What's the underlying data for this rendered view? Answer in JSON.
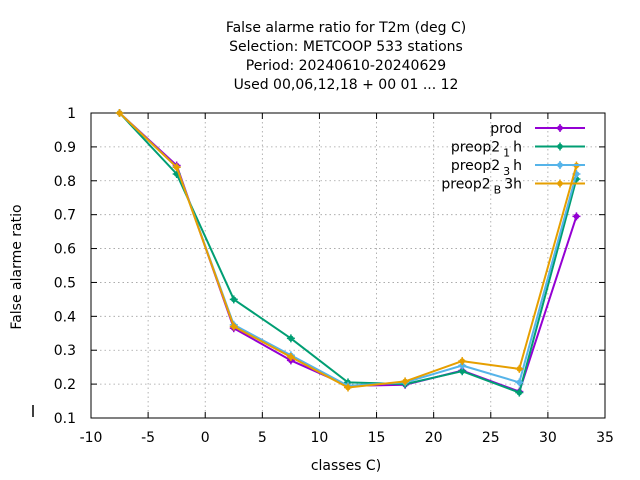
{
  "chart_data": {
    "type": "line",
    "title_lines": [
      "False alarme ratio  for T2m (deg C)",
      "Selection: METCOOP    533 stations",
      "Period: 20240610-20240629",
      "Used  00,06,12,18 + 00 01 ... 12"
    ],
    "xlabel": "classes C)",
    "ylabel": "False alarme ratio",
    "xlim": [
      -10,
      35
    ],
    "ylim": [
      0.1,
      1
    ],
    "xticks": [
      "-10",
      "-5",
      "0",
      "5",
      "10",
      "15",
      "20",
      "25",
      "30",
      "35"
    ],
    "yticks": [
      "0.1",
      "0.2",
      "0.3",
      "0.4",
      "0.5",
      "0.6",
      "0.7",
      "0.8",
      "0.9",
      "1"
    ],
    "grid": true,
    "legend_position": "top-right",
    "x": [
      -7.5,
      -2.5,
      2.5,
      7.5,
      12.5,
      17.5,
      22.5,
      27.5,
      32.5
    ],
    "series": [
      {
        "name": "prod",
        "name_sub": "",
        "name_suffix": "",
        "color": "#9400d3",
        "values": [
          1.0,
          0.845,
          0.365,
          0.27,
          0.195,
          0.198,
          0.24,
          0.178,
          0.695
        ]
      },
      {
        "name": "preop2",
        "name_sub": "1",
        "name_suffix": "h",
        "color": "#009e73",
        "values": [
          1.0,
          0.82,
          0.45,
          0.335,
          0.205,
          0.2,
          0.238,
          0.175,
          0.805
        ]
      },
      {
        "name": "preop2",
        "name_sub": "3",
        "name_suffix": "h",
        "color": "#56b4e9",
        "values": [
          1.0,
          0.84,
          0.375,
          0.285,
          0.195,
          0.205,
          0.255,
          0.205,
          0.82
        ]
      },
      {
        "name": "preop2",
        "name_sub": "B",
        "name_suffix": "3h",
        "color": "#e69f00",
        "values": [
          1.0,
          0.84,
          0.37,
          0.28,
          0.19,
          0.208,
          0.268,
          0.245,
          0.845
        ]
      }
    ]
  }
}
